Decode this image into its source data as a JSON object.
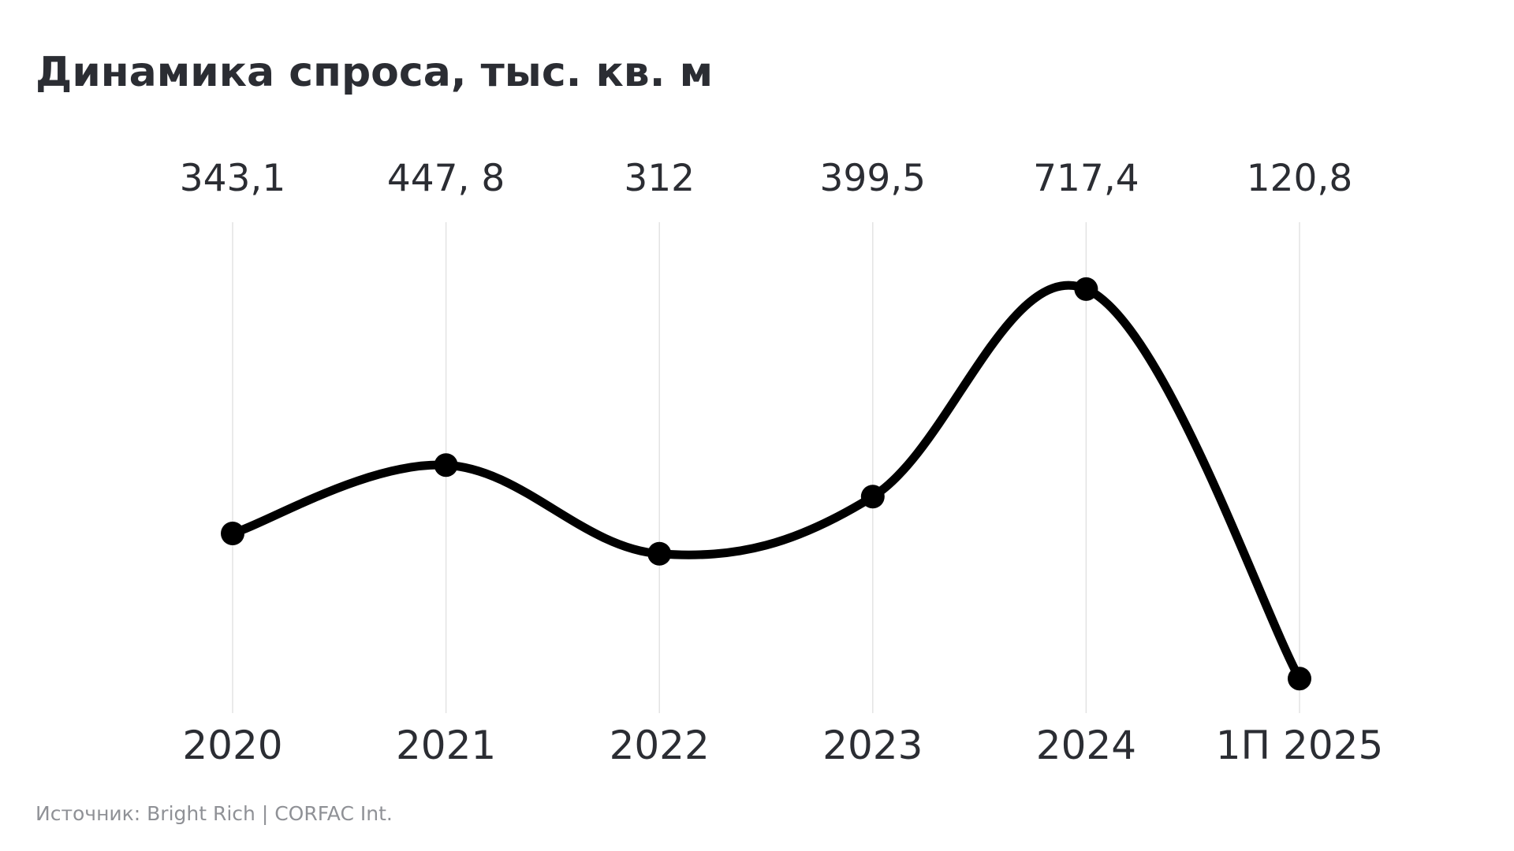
{
  "header": {
    "title": "Динамика спроса, тыс. кв. м"
  },
  "footer": {
    "source": "Источник: Bright Rich | CORFAC Int."
  },
  "colors": {
    "line": "#000000",
    "marker": "#000000",
    "gridline": "#e3e3e3",
    "text": "#2b2d33",
    "source_text": "#8f9196"
  },
  "chart_data": {
    "type": "line",
    "title": "Динамика спроса, тыс. кв. м",
    "xlabel": "",
    "ylabel": "",
    "categories": [
      "2020",
      "2021",
      "2022",
      "2023",
      "2024",
      "1П 2025"
    ],
    "series": [
      {
        "values": [
          343.1,
          447.8,
          312,
          399.5,
          717.4,
          120.8
        ]
      }
    ],
    "data_labels": [
      "343,1",
      "447, 8",
      "312",
      "399,5",
      "717,4",
      "120,8"
    ],
    "value_labels_position": "top",
    "smooth": true,
    "markers": true,
    "grid": "vertical",
    "legend": "none"
  }
}
